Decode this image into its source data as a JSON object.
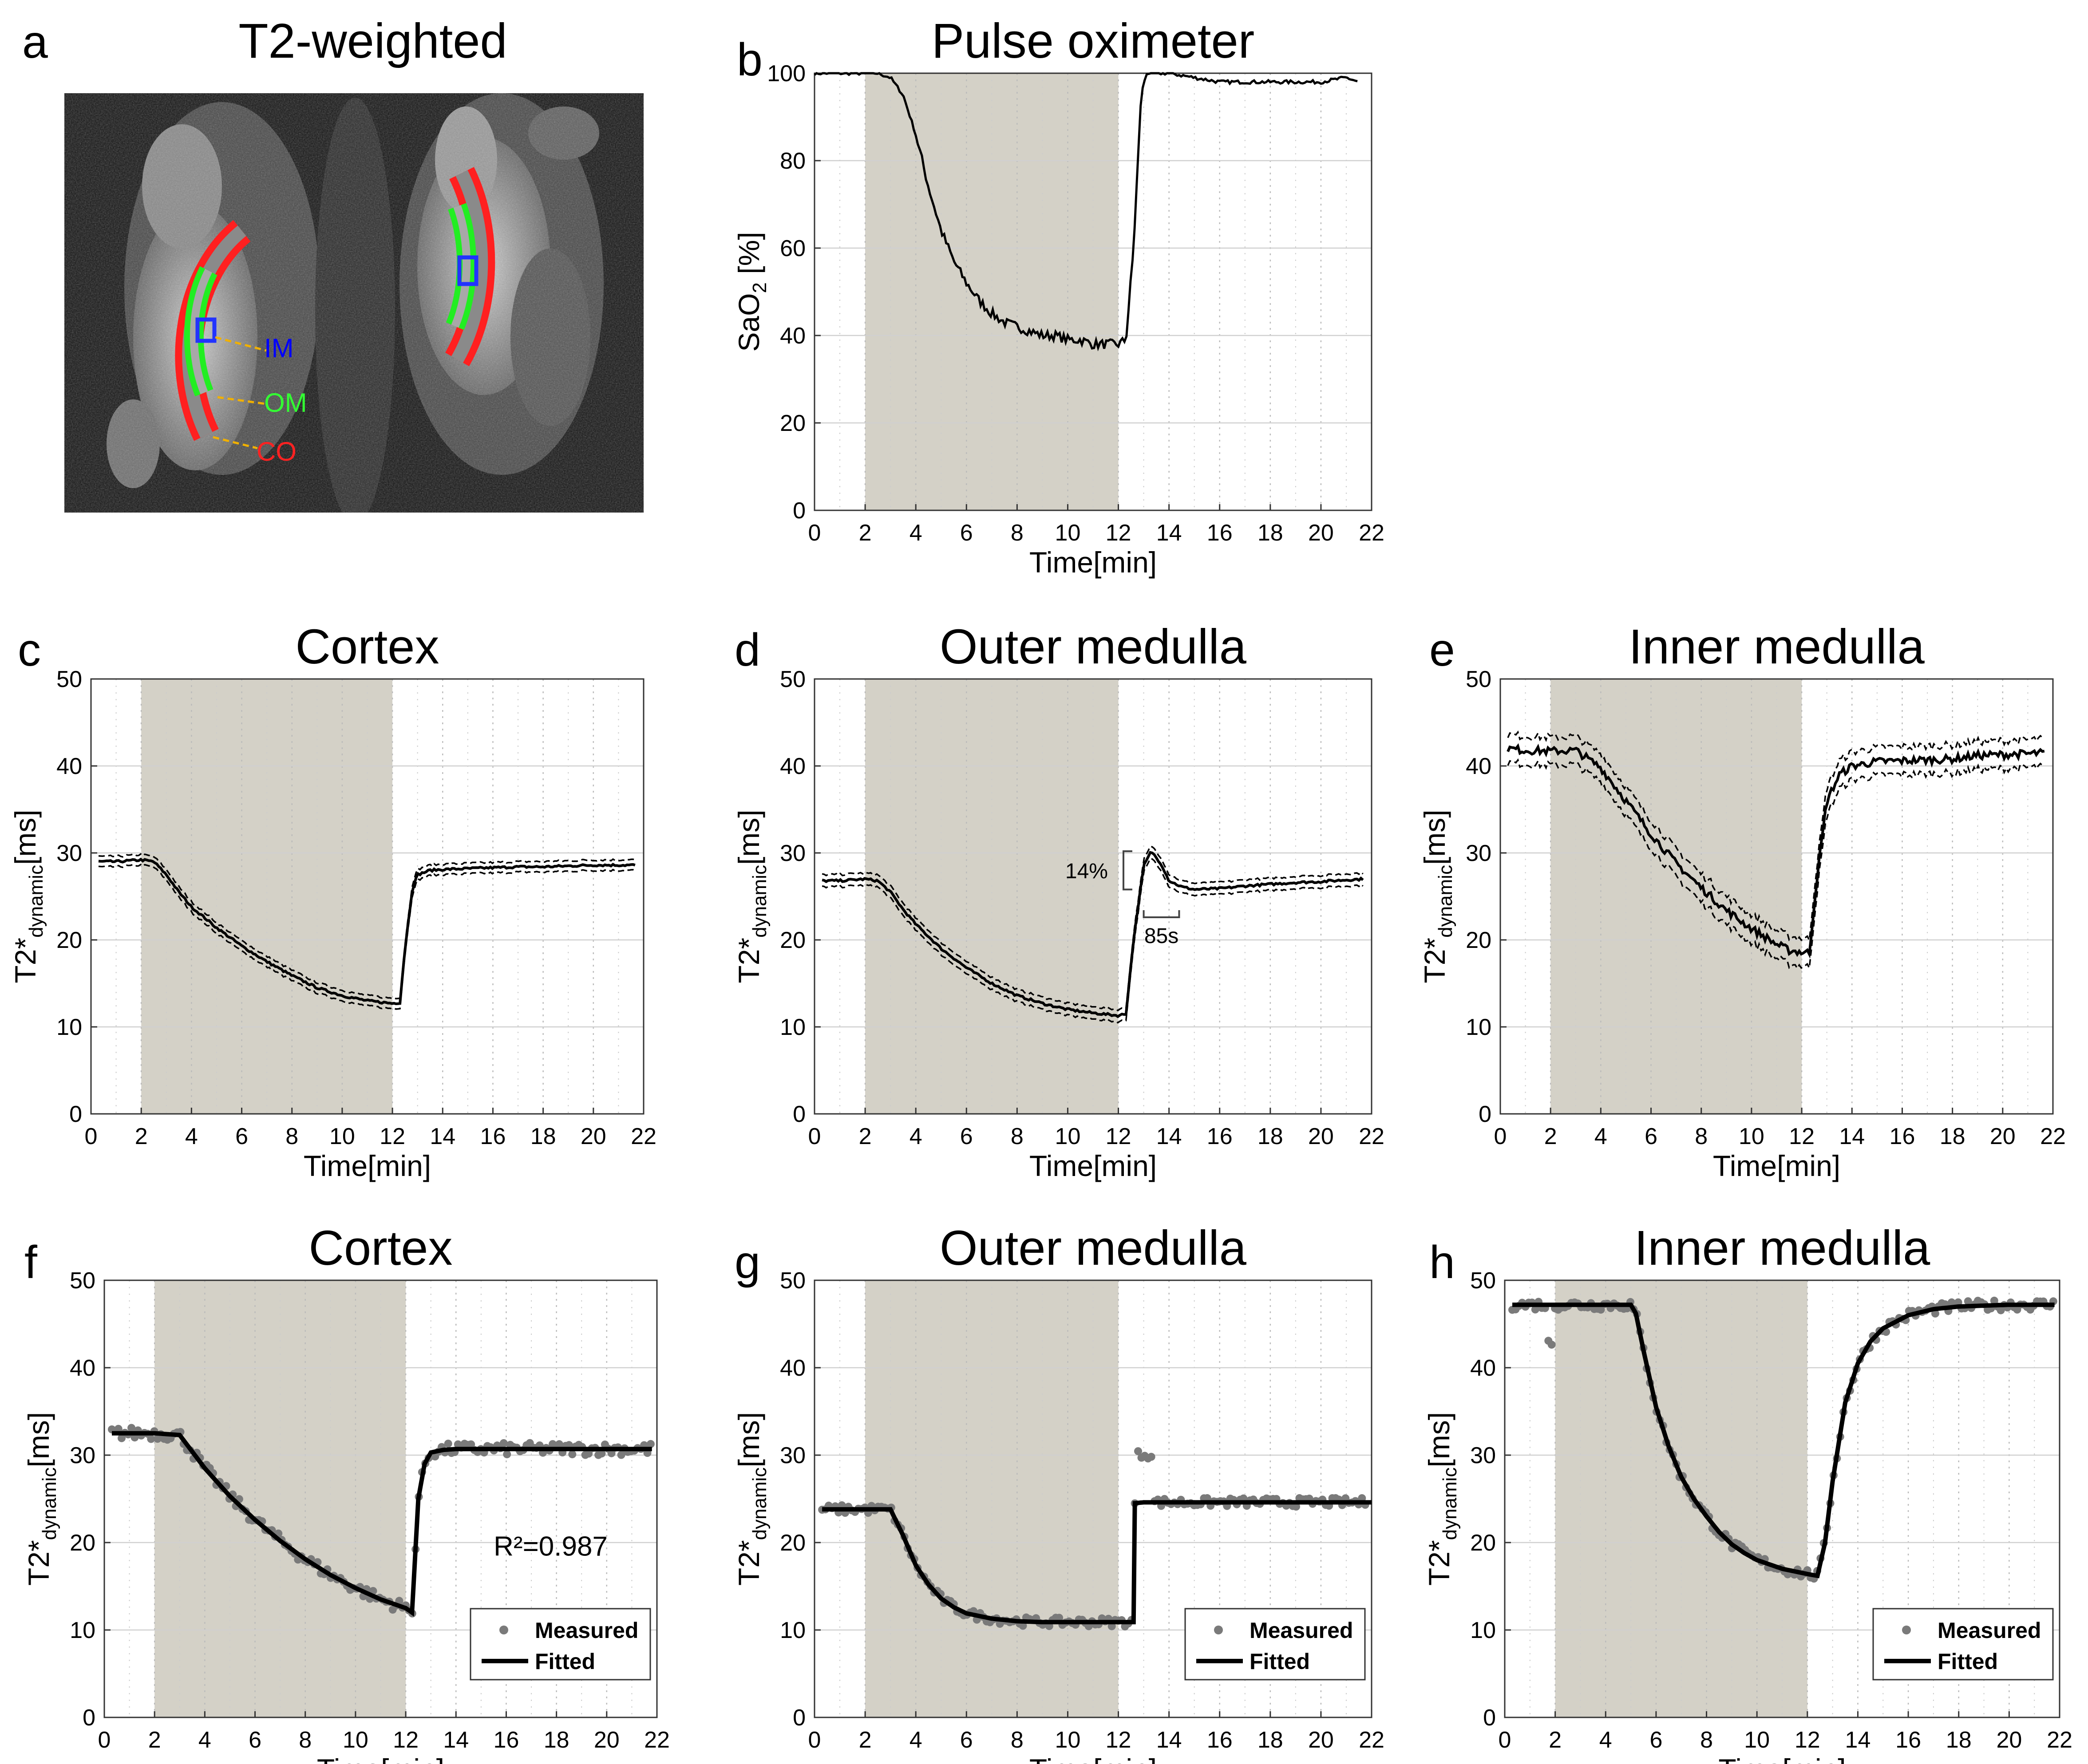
{
  "figure": {
    "panel_letters": [
      "a",
      "b",
      "c",
      "d",
      "e",
      "f",
      "g",
      "h"
    ],
    "mri": {
      "title": "T2-weighted",
      "labels": [
        {
          "text": "IM",
          "color": "#0000ff"
        },
        {
          "text": "OM",
          "color": "#33ff33"
        },
        {
          "text": "CO",
          "color": "#ff2222"
        }
      ],
      "leader_color": "#f0b000"
    },
    "common": {
      "xlabel": "Time[min]",
      "xlim": [
        0,
        22
      ],
      "xticks": [
        0,
        2,
        4,
        6,
        8,
        10,
        12,
        14,
        16,
        18,
        20,
        22
      ],
      "ylabel_t2_main": "T2*",
      "ylabel_t2_sub": "dynamic",
      "ylabel_t2_unit": "[ms]",
      "ylim_t2": [
        0,
        50
      ],
      "yticks_t2": [
        0,
        10,
        20,
        30,
        40,
        50
      ],
      "shade_interval_min": [
        2,
        12
      ],
      "shade_color": "#d4d1c7"
    }
  },
  "chart_data": [
    {
      "id": "b",
      "type": "line",
      "title": "Pulse oximeter",
      "ylabel_main": "SaO",
      "ylabel_sub": "2",
      "ylabel_unit": " [%]",
      "xlabel": "Time[min]",
      "ylim": [
        0,
        100
      ],
      "yticks": [
        0,
        20,
        40,
        60,
        80,
        100
      ],
      "series": [
        {
          "name": "SaO2",
          "x": [
            0,
            1,
            2,
            2.5,
            3,
            3.5,
            4,
            4.5,
            5,
            5.5,
            6,
            6.5,
            7,
            7.5,
            8,
            8.5,
            9,
            9.5,
            10,
            10.5,
            11,
            11.5,
            12,
            12.3,
            12.6,
            12.9,
            13.1,
            13.5,
            14,
            15,
            16,
            17,
            18,
            19,
            20,
            21,
            21.5
          ],
          "y": [
            100,
            100,
            100,
            100,
            99,
            95,
            86,
            74,
            64,
            57,
            52,
            48,
            45,
            43,
            42,
            41,
            40,
            40,
            39,
            39,
            38,
            38,
            38,
            39,
            60,
            95,
            100,
            100,
            100,
            99,
            98,
            98,
            98,
            98,
            98,
            99,
            98
          ]
        }
      ]
    },
    {
      "id": "c",
      "type": "line",
      "title": "Cortex",
      "ylim": [
        0,
        50
      ],
      "series": [
        {
          "name": "mean",
          "x": [
            0.3,
            1,
            2,
            2.5,
            3,
            3.5,
            4,
            5,
            6,
            7,
            8,
            9,
            10,
            11,
            12,
            12.3,
            12.5,
            12.8,
            13,
            13.5,
            14,
            15,
            16,
            17,
            18,
            19,
            20,
            21,
            21.7
          ],
          "y": [
            29,
            29,
            29.2,
            29,
            27.5,
            25.5,
            23.8,
            21.4,
            19.3,
            17.5,
            15.9,
            14.5,
            13.6,
            13,
            12.7,
            12.8,
            19,
            26,
            27.5,
            28,
            28.1,
            28.2,
            28.3,
            28.4,
            28.4,
            28.5,
            28.6,
            28.6,
            28.6
          ]
        }
      ],
      "band": 0.6
    },
    {
      "id": "d",
      "type": "line",
      "title": "Outer medulla",
      "ylim": [
        0,
        50
      ],
      "series": [
        {
          "name": "mean",
          "x": [
            0.3,
            1,
            2,
            2.5,
            3,
            3.5,
            4,
            5,
            6,
            7,
            8,
            9,
            10,
            11,
            12,
            12.3,
            12.6,
            13,
            13.3,
            13.7,
            14,
            14.5,
            15,
            16,
            17,
            18,
            19,
            20,
            21,
            21.7
          ],
          "y": [
            26.8,
            26.8,
            27,
            26.8,
            25.5,
            23.5,
            21.8,
            19,
            16.8,
            15,
            13.6,
            12.7,
            12,
            11.6,
            11.3,
            11.5,
            20,
            28.5,
            30.2,
            28.7,
            26.8,
            26.1,
            25.8,
            25.9,
            26.2,
            26.4,
            26.6,
            26.7,
            26.9,
            27
          ]
        }
      ],
      "band": 0.7,
      "annotations": {
        "pct": "14%",
        "dt": "85s"
      }
    },
    {
      "id": "e",
      "type": "line",
      "title": "Inner medulla",
      "ylim": [
        0,
        50
      ],
      "series": [
        {
          "name": "mean",
          "x": [
            0.3,
            1,
            2,
            3,
            4,
            5,
            6,
            7,
            8,
            9,
            10,
            11,
            11.5,
            12,
            12.3,
            12.6,
            13,
            13.5,
            14,
            15,
            16,
            17,
            18,
            19,
            20,
            21,
            21.7
          ],
          "y": [
            42,
            41.8,
            41.7,
            41.8,
            39.8,
            36,
            32.2,
            28.8,
            26,
            23.4,
            21.3,
            19.5,
            18.8,
            18.6,
            18.5,
            27,
            36,
            39,
            40,
            40.5,
            40.6,
            40.7,
            40.8,
            41.2,
            41.3,
            41.4,
            41.5
          ]
        }
      ],
      "band": 1.6
    },
    {
      "id": "f",
      "type": "scatter",
      "title": "Cortex",
      "ylim": [
        0,
        50
      ],
      "fit": {
        "x": [
          0.3,
          2,
          3,
          4,
          5,
          6,
          7,
          8,
          9,
          10,
          11,
          12,
          12.25,
          12.5,
          12.75,
          13,
          13.5,
          14,
          15,
          16,
          18,
          20,
          21.8
        ],
        "y": [
          32.5,
          32.5,
          32.3,
          28.5,
          25.3,
          22.6,
          20.2,
          18.1,
          16.3,
          14.8,
          13.5,
          12.5,
          12,
          25,
          29,
          30.3,
          30.6,
          30.7,
          30.7,
          30.7,
          30.7,
          30.7,
          30.7
        ]
      },
      "noise": 0.7,
      "r2": "R²=0.987"
    },
    {
      "id": "g",
      "type": "scatter",
      "title": "Outer medulla",
      "ylim": [
        0,
        50
      ],
      "fit": {
        "x": [
          0.3,
          3,
          3.5,
          4,
          4.5,
          5,
          5.5,
          6,
          7,
          8,
          9,
          10,
          11,
          12,
          12.6,
          12.65,
          13,
          14,
          16,
          18,
          20,
          22
        ],
        "y": [
          23.8,
          23.8,
          20.8,
          17.4,
          15.2,
          13.6,
          12.6,
          11.9,
          11.3,
          11,
          10.9,
          10.9,
          10.9,
          10.9,
          10.9,
          24.5,
          24.6,
          24.6,
          24.6,
          24.6,
          24.6,
          24.6
        ]
      },
      "noise": 0.5
    },
    {
      "id": "h",
      "type": "scatter",
      "title": "Inner medulla",
      "ylim": [
        0,
        50
      ],
      "fit": {
        "x": [
          0.3,
          2,
          4,
          5,
          5.2,
          5.5,
          6,
          6.5,
          7,
          7.5,
          8,
          8.5,
          9,
          9.5,
          10,
          11,
          12,
          12.4,
          12.7,
          13,
          13.5,
          14,
          14.5,
          15,
          16,
          17,
          18,
          20,
          21.8
        ],
        "y": [
          47.2,
          47.2,
          47.2,
          47.2,
          46.2,
          42,
          35.5,
          31,
          27.5,
          25,
          23,
          21.2,
          19.8,
          18.8,
          18,
          17,
          16.4,
          16.2,
          20,
          27,
          36,
          40.5,
          43,
          44.5,
          46,
          46.7,
          47,
          47.2,
          47.2
        ]
      },
      "noise": 0.6,
      "legend": {
        "measured": "Measured",
        "fitted": "Fitted"
      }
    }
  ]
}
